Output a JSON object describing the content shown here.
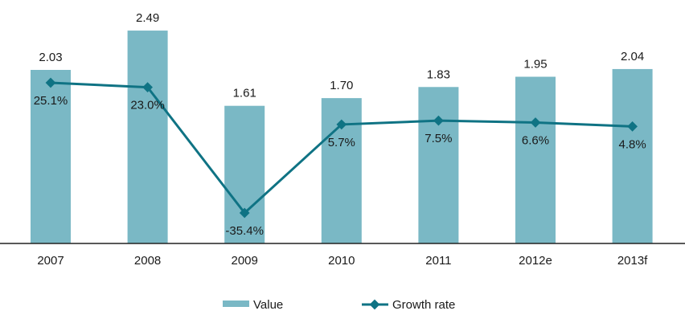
{
  "chart_data": {
    "type": "bar",
    "title": "",
    "xlabel": "",
    "ylabel": "",
    "categories": [
      "2007",
      "2008",
      "2009",
      "2010",
      "2011",
      "2012e",
      "2013f"
    ],
    "series": [
      {
        "name": "Value",
        "type": "bar",
        "values": [
          2.03,
          2.49,
          1.61,
          1.7,
          1.83,
          1.95,
          2.04
        ],
        "labels": [
          "2.03",
          "2.49",
          "1.61",
          "1.70",
          "1.83",
          "1.95",
          "2.04"
        ],
        "color": "#7ab8c5"
      },
      {
        "name": "Growth rate",
        "type": "line",
        "marker": "diamond",
        "values": [
          25.1,
          23.0,
          -35.4,
          5.7,
          7.5,
          6.6,
          4.8
        ],
        "labels": [
          "25.1%",
          "23.0%",
          "-35.4%",
          "5.7%",
          "7.5%",
          "6.6%",
          "4.8%"
        ],
        "unit": "%",
        "color": "#0f7384"
      }
    ],
    "ylim": [
      0,
      2.5
    ],
    "y2lim": [
      -40,
      30
    ],
    "grid": false,
    "axes_visible": "x-axis only",
    "legend": {
      "position": "bottom",
      "entries": [
        "Value",
        "Growth rate"
      ]
    }
  }
}
